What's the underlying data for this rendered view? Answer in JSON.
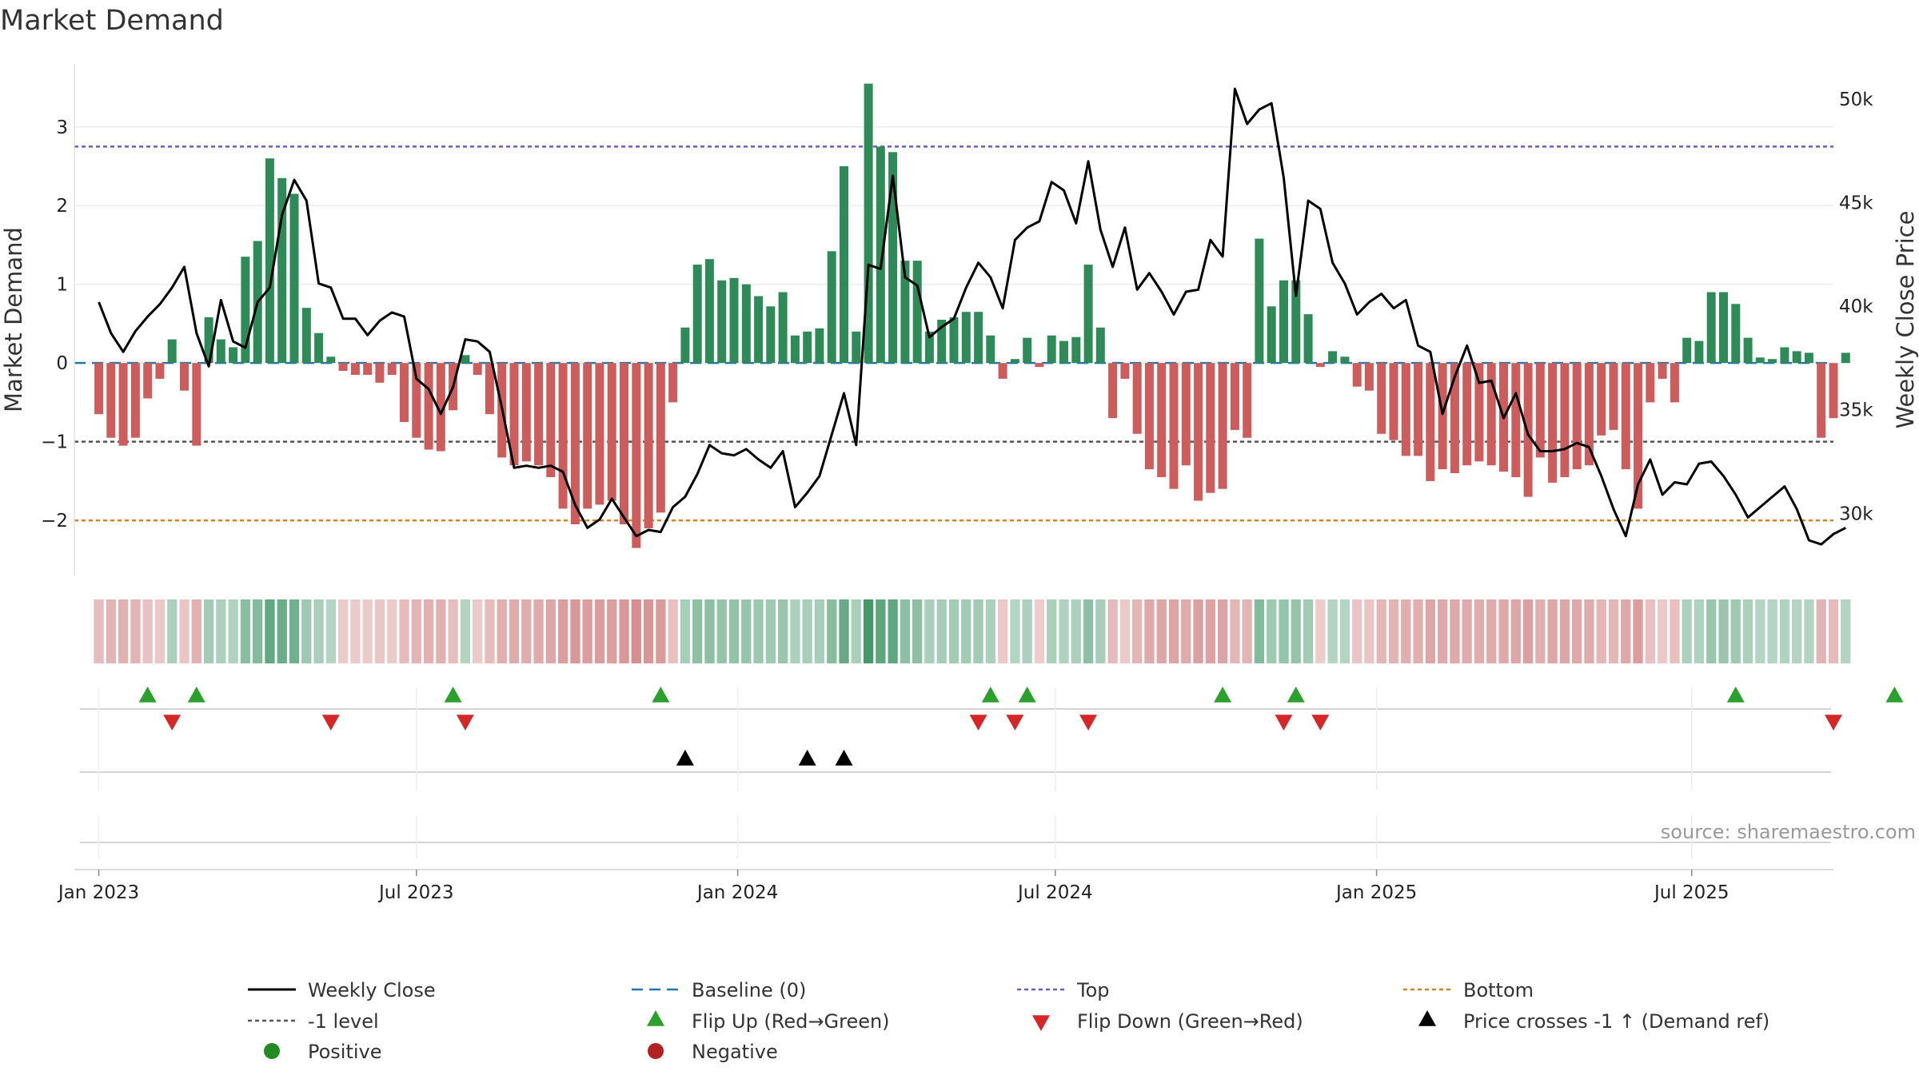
{
  "title": "Market Demand",
  "source": "source: sharemaestro.com",
  "chart_data": {
    "type": "bar+line",
    "title": "Market Demand",
    "ylabel_left": "Market Demand",
    "ylabel_right": "Weekly Close Price",
    "ylim_left": [
      -2.7,
      3.8
    ],
    "ylim_right": [
      27000,
      51700
    ],
    "yticks_left": [
      {
        "v": 3,
        "label": "3"
      },
      {
        "v": 2,
        "label": "2"
      },
      {
        "v": 1,
        "label": "1"
      },
      {
        "v": 0,
        "label": "0"
      },
      {
        "v": -1,
        "label": "−1"
      },
      {
        "v": -2,
        "label": "−2"
      }
    ],
    "yticks_right": [
      {
        "v": 50000,
        "label": "50k"
      },
      {
        "v": 45000,
        "label": "45k"
      },
      {
        "v": 40000,
        "label": "40k"
      },
      {
        "v": 35000,
        "label": "35k"
      },
      {
        "v": 30000,
        "label": "30k"
      }
    ],
    "x_range_weeks": [
      -2,
      142
    ],
    "xticks": [
      {
        "w": 0,
        "label": "Jan 2023"
      },
      {
        "w": 26,
        "label": "Jul 2023"
      },
      {
        "w": 52.3,
        "label": "Jan 2024"
      },
      {
        "w": 78.3,
        "label": "Jul 2024"
      },
      {
        "w": 104.6,
        "label": "Jan 2025"
      },
      {
        "w": 130.4,
        "label": "Jul 2025"
      }
    ],
    "start_date": "2022-12-26",
    "reference_lines": {
      "baseline": 0,
      "top": 2.75,
      "level_minus1": -1,
      "bottom": -2
    },
    "demand": [
      -0.65,
      -0.95,
      -1.05,
      -0.95,
      -0.45,
      -0.2,
      0.3,
      -0.35,
      -1.05,
      0.58,
      0.3,
      0.2,
      1.35,
      1.55,
      2.6,
      2.35,
      2.15,
      0.7,
      0.38,
      0.08,
      -0.1,
      -0.15,
      -0.15,
      -0.25,
      -0.15,
      -0.75,
      -0.95,
      -1.1,
      -1.12,
      -0.6,
      0.1,
      -0.15,
      -0.65,
      -1.2,
      -1.3,
      -1.25,
      -1.3,
      -1.45,
      -1.85,
      -2.05,
      -1.85,
      -1.8,
      -1.75,
      -2.05,
      -2.35,
      -2.1,
      -1.9,
      -0.5,
      0.45,
      1.25,
      1.32,
      1.05,
      1.08,
      1.0,
      0.85,
      0.72,
      0.9,
      0.35,
      0.4,
      0.44,
      1.42,
      2.5,
      0.4,
      3.55,
      2.75,
      2.68,
      1.3,
      1.3,
      0.4,
      0.55,
      0.58,
      0.65,
      0.65,
      0.35,
      -0.2,
      0.05,
      0.32,
      -0.05,
      0.35,
      0.28,
      0.33,
      1.25,
      0.45,
      -0.7,
      -0.2,
      -0.9,
      -1.35,
      -1.45,
      -1.6,
      -1.3,
      -1.75,
      -1.65,
      -1.6,
      -0.85,
      -0.95,
      1.58,
      0.72,
      1.05,
      1.05,
      0.62,
      -0.05,
      0.15,
      0.08,
      -0.3,
      -0.35,
      -0.9,
      -0.98,
      -1.18,
      -1.18,
      -1.5,
      -1.35,
      -1.4,
      -1.3,
      -1.25,
      -1.3,
      -1.38,
      -1.45,
      -1.7,
      -1.2,
      -1.52,
      -1.45,
      -1.35,
      -1.3,
      -0.92,
      -0.85,
      -1.35,
      -1.85,
      -0.5,
      -0.2,
      -0.5,
      0.32,
      0.28,
      0.9,
      0.9,
      0.75,
      0.32,
      0.07,
      0.05,
      0.2,
      0.15,
      0.13,
      -0.95,
      -0.7,
      0.13
    ],
    "weekly_close": [
      40200,
      38700,
      37800,
      38800,
      39500,
      40100,
      40900,
      41900,
      38700,
      37100,
      40300,
      38300,
      38000,
      40200,
      40900,
      44400,
      46100,
      45100,
      41100,
      40900,
      39400,
      39400,
      38600,
      39300,
      39700,
      39500,
      36500,
      36000,
      34800,
      36100,
      38400,
      38300,
      37800,
      35100,
      32200,
      32300,
      32200,
      32300,
      32000,
      30400,
      29300,
      29700,
      30700,
      29800,
      28900,
      29200,
      29100,
      30300,
      30800,
      31900,
      33300,
      32900,
      32800,
      33100,
      32600,
      32200,
      33000,
      30300,
      31000,
      31800,
      33800,
      35800,
      33300,
      42000,
      41800,
      46300,
      41400,
      41000,
      38500,
      39000,
      39400,
      40900,
      42100,
      41400,
      39900,
      43200,
      43800,
      44100,
      46000,
      45600,
      44000,
      47000,
      43700,
      41900,
      43800,
      40800,
      41600,
      40700,
      39600,
      40700,
      40800,
      43200,
      42400,
      50500,
      48800,
      49500,
      49800,
      46200,
      40500,
      45100,
      44700,
      42100,
      41100,
      39600,
      40200,
      40600,
      39900,
      40300,
      38100,
      37800,
      34800,
      36600,
      38100,
      36300,
      36400,
      34600,
      35800,
      33800,
      33000,
      33000,
      33100,
      33400,
      33200,
      31800,
      30200,
      28900,
      31400,
      32600,
      30900,
      31500,
      31400,
      32400,
      32500,
      31800,
      30900,
      29800,
      30300,
      30800,
      31300,
      30200,
      28700,
      28500,
      29000,
      29300
    ],
    "heat_strip": {
      "description": "Weekly demand intensity strip, green = positive, red = negative"
    },
    "flip_up_weeks": [
      4,
      8,
      29,
      46,
      73,
      76,
      92,
      98,
      134,
      147
    ],
    "flip_down_weeks": [
      6,
      19,
      30,
      72,
      75,
      81,
      97,
      100,
      142
    ],
    "price_cross_weeks": [
      48,
      58,
      61
    ],
    "colors": {
      "positive_bar": "#2e8b57",
      "negative_bar": "#cd5c5c",
      "close_line": "#000000",
      "baseline": "#1f77b4",
      "top_line": "#6a5acd",
      "bottom_line": "#d2841d",
      "level_line": "#555555",
      "flip_up": "#2ca02c",
      "flip_down": "#d62728",
      "positive_dot": "#228b22",
      "negative_dot": "#b22222"
    }
  },
  "legend": [
    {
      "key": "weekly_close",
      "label": "Weekly Close"
    },
    {
      "key": "baseline",
      "label": "Baseline (0)"
    },
    {
      "key": "top",
      "label": "Top"
    },
    {
      "key": "bottom",
      "label": "Bottom"
    },
    {
      "key": "level",
      "label": "-1 level"
    },
    {
      "key": "flip_up",
      "label": "Flip Up (Red→Green)"
    },
    {
      "key": "flip_down",
      "label": "Flip Down (Green→Red)"
    },
    {
      "key": "price_cross",
      "label": "Price crosses -1 ↑ (Demand ref)"
    },
    {
      "key": "positive",
      "label": "Positive"
    },
    {
      "key": "negative",
      "label": "Negative"
    }
  ]
}
